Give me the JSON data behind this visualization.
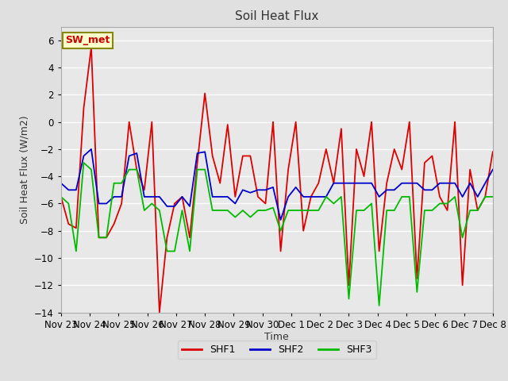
{
  "title": "Soil Heat Flux",
  "ylabel": "Soil Heat Flux (W/m2)",
  "xlabel": "Time",
  "ylim": [
    -14,
    7
  ],
  "fig_bg_color": "#e0e0e0",
  "plot_bg_color": "#e8e8e8",
  "grid_color": "#ffffff",
  "annotation_text": "SW_met",
  "annotation_bg": "#ffffcc",
  "annotation_border": "#888800",
  "annotation_text_color": "#cc0000",
  "shf1_color": "#dd0000",
  "shf2_color": "#0000cc",
  "shf3_color": "#00bb00",
  "x_tick_labels": [
    "Nov 23",
    "Nov 24",
    "Nov 25",
    "Nov 26",
    "Nov 27",
    "Nov 28",
    "Nov 29",
    "Nov 30",
    "Dec 1",
    "Dec 2",
    "Dec 3",
    "Dec 4",
    "Dec 5",
    "Dec 6",
    "Dec 7",
    "Dec 8"
  ],
  "shf1": [
    -5.5,
    -7.5,
    -7.8,
    1.0,
    5.5,
    -8.5,
    -8.5,
    -7.5,
    -6.0,
    0.0,
    -3.5,
    -5.0,
    -0.0,
    -14.0,
    -8.5,
    -6.0,
    -5.5,
    -8.5,
    -3.0,
    2.1,
    -2.5,
    -4.5,
    -0.2,
    -5.5,
    -2.5,
    -2.5,
    -5.5,
    -6.0,
    -0.0,
    -9.5,
    -3.5,
    -0.0,
    -8.0,
    -5.5,
    -4.5,
    -2.0,
    -4.5,
    -0.5,
    -12.0,
    -2.0,
    -4.0,
    -0.0,
    -9.5,
    -4.5,
    -2.0,
    -3.5,
    0.0,
    -11.5,
    -3.0,
    -2.5,
    -5.5,
    -6.5,
    0.0,
    -12.0,
    -3.5,
    -6.5,
    -5.5,
    -2.2
  ],
  "shf2": [
    -4.5,
    -5.0,
    -5.0,
    -2.5,
    -2.0,
    -6.0,
    -6.0,
    -5.5,
    -5.5,
    -2.5,
    -2.3,
    -5.5,
    -5.5,
    -5.5,
    -6.2,
    -6.2,
    -5.5,
    -6.2,
    -2.3,
    -2.2,
    -5.5,
    -5.5,
    -5.5,
    -6.0,
    -5.0,
    -5.2,
    -5.0,
    -5.0,
    -4.8,
    -7.2,
    -5.5,
    -4.8,
    -5.5,
    -5.5,
    -5.5,
    -5.5,
    -4.5,
    -4.5,
    -4.5,
    -4.5,
    -4.5,
    -4.5,
    -5.5,
    -5.0,
    -5.0,
    -4.5,
    -4.5,
    -4.5,
    -5.0,
    -5.0,
    -4.5,
    -4.5,
    -4.5,
    -5.5,
    -4.5,
    -5.5,
    -4.5,
    -3.5
  ],
  "shf3": [
    -5.5,
    -6.0,
    -9.5,
    -3.0,
    -3.5,
    -8.5,
    -8.5,
    -4.5,
    -4.5,
    -3.5,
    -3.5,
    -6.5,
    -6.0,
    -6.5,
    -9.5,
    -9.5,
    -6.5,
    -9.5,
    -3.5,
    -3.5,
    -6.5,
    -6.5,
    -6.5,
    -7.0,
    -6.5,
    -7.0,
    -6.5,
    -6.5,
    -6.3,
    -8.0,
    -6.5,
    -6.5,
    -6.5,
    -6.5,
    -6.5,
    -5.5,
    -6.0,
    -5.5,
    -13.0,
    -6.5,
    -6.5,
    -6.0,
    -13.5,
    -6.5,
    -6.5,
    -5.5,
    -5.5,
    -12.5,
    -6.5,
    -6.5,
    -6.0,
    -6.0,
    -5.5,
    -8.5,
    -6.5,
    -6.5,
    -5.5,
    -5.5
  ]
}
